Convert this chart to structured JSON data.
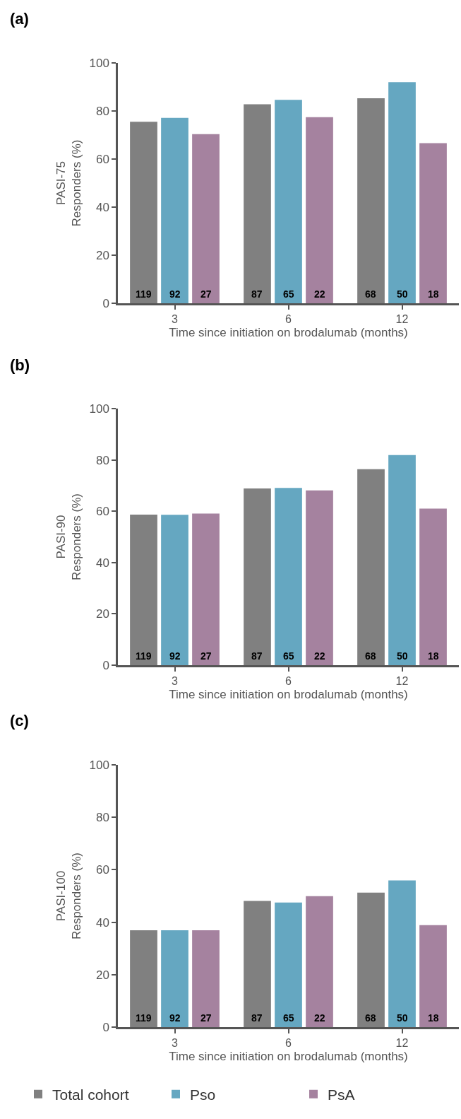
{
  "chart_data": [
    {
      "type": "bar",
      "title": "(a)",
      "xlabel": "Time since initiation on brodalumab (months)",
      "ylabel": "PASI-75\nResponders (%)",
      "categories": [
        "3",
        "6",
        "12"
      ],
      "ylim": [
        0,
        100
      ],
      "yticks": [
        0,
        20,
        40,
        60,
        80,
        100
      ],
      "series": [
        {
          "color": "#808080",
          "values": [
            75.5,
            82.8,
            85.3
          ]
        },
        {
          "color": "#65a7c1",
          "values": [
            77.1,
            84.6,
            92.0
          ]
        },
        {
          "color": "#a5829f",
          "values": [
            70.4,
            77.4,
            66.6
          ]
        }
      ],
      "annotations": [
        {
          "text": "119",
          "x": "3",
          "y": 0
        },
        {
          "text": "92",
          "x": "3",
          "y": 0
        },
        {
          "text": "27",
          "x": "3",
          "y": 0
        },
        {
          "text": "87",
          "x": "6",
          "y": 0
        },
        {
          "text": "65",
          "x": "6",
          "y": 0
        },
        {
          "text": "22",
          "x": "6",
          "y": 0
        },
        {
          "text": "68",
          "x": "12",
          "y": 0
        },
        {
          "text": "50",
          "x": "12",
          "y": 0
        },
        {
          "text": "18",
          "x": "12",
          "y": 0
        }
      ]
    },
    {
      "type": "bar",
      "title": "(b)",
      "xlabel": "Time since initiation on brodalumab (months)",
      "ylabel": "PASI-90\nResponders (%)",
      "categories": [
        "3",
        "6",
        "12"
      ],
      "ylim": [
        0,
        100
      ],
      "yticks": [
        0,
        20,
        40,
        60,
        80,
        100
      ],
      "series": [
        {
          "color": "#808080",
          "values": [
            58.7,
            68.9,
            76.4
          ]
        },
        {
          "color": "#65a7c1",
          "values": [
            58.6,
            69.1,
            81.9
          ]
        },
        {
          "color": "#a5829f",
          "values": [
            59.1,
            68.1,
            61.0
          ]
        }
      ],
      "annotations": [
        {
          "text": "119",
          "x": "3",
          "y": 0
        },
        {
          "text": "92",
          "x": "3",
          "y": 0
        },
        {
          "text": "27",
          "x": "3",
          "y": 0
        },
        {
          "text": "87",
          "x": "6",
          "y": 0
        },
        {
          "text": "65",
          "x": "6",
          "y": 0
        },
        {
          "text": "22",
          "x": "6",
          "y": 0
        },
        {
          "text": "68",
          "x": "12",
          "y": 0
        },
        {
          "text": "50",
          "x": "12",
          "y": 0
        },
        {
          "text": "18",
          "x": "12",
          "y": 0
        }
      ]
    },
    {
      "type": "bar",
      "title": "(c)",
      "xlabel": "Time since initiation on brodalumab (months)",
      "ylabel": "PASI-100\nResponders (%)",
      "categories": [
        "3",
        "6",
        "12"
      ],
      "ylim": [
        0,
        100
      ],
      "yticks": [
        0,
        20,
        40,
        60,
        80,
        100
      ],
      "legend": "bottom",
      "series": [
        {
          "name": "Total cohort",
          "color": "#808080",
          "values": [
            36.9,
            48.1,
            51.3
          ]
        },
        {
          "name": "Pso",
          "color": "#65a7c1",
          "values": [
            36.9,
            47.5,
            55.9
          ]
        },
        {
          "name": "PsA",
          "color": "#a5829f",
          "values": [
            36.9,
            49.9,
            38.9
          ]
        }
      ],
      "annotations": [
        {
          "text": "119",
          "x": "3",
          "y": 0
        },
        {
          "text": "92",
          "x": "3",
          "y": 0
        },
        {
          "text": "27",
          "x": "3",
          "y": 0
        },
        {
          "text": "87",
          "x": "6",
          "y": 0
        },
        {
          "text": "65",
          "x": "6",
          "y": 0
        },
        {
          "text": "22",
          "x": "6",
          "y": 0
        },
        {
          "text": "68",
          "x": "12",
          "y": 0
        },
        {
          "text": "50",
          "x": "12",
          "y": 0
        },
        {
          "text": "18",
          "x": "12",
          "y": 0
        }
      ]
    }
  ]
}
